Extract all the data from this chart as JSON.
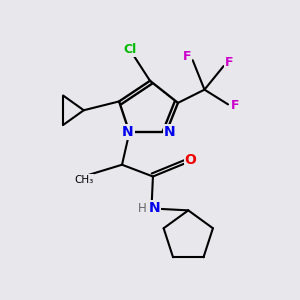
{
  "bg_color": "#e8e8ec",
  "atom_colors": {
    "C": "#000000",
    "N": "#0000ee",
    "O": "#ee0000",
    "F": "#cc00cc",
    "Cl": "#00bb00",
    "H": "#666666"
  }
}
